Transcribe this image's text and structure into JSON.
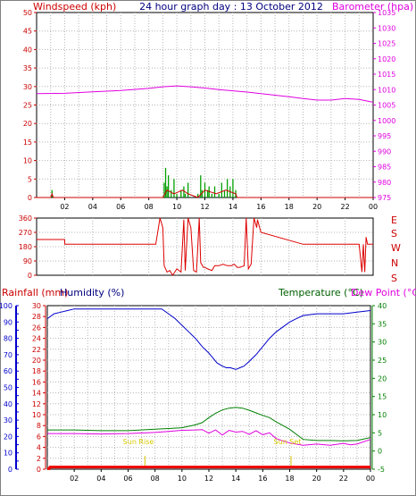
{
  "header": {
    "left_label": "Windspeed (kph)",
    "title": "24 hour graph day : 13 October 2012",
    "right_label": "Barometer (hpa)"
  },
  "bottom_header": {
    "rainfall_label": "Rainfall (mm)",
    "humidity_label": "Humidity (%)",
    "temperature_label": "Temperature (°C)",
    "dewpoint_label": "Dew Point (°C)"
  },
  "annotations": {
    "sunrise": "Sun Rise",
    "sunset": "Sun Set"
  },
  "colors": {
    "windspeed": "#00a000",
    "gust": "#cc0000",
    "barometer": "#e000e0",
    "direction": "#dd0000",
    "humidity": "#0000cc",
    "temperature": "#008000",
    "dewpoint": "#e000e0",
    "rainfall": "#ee0000",
    "sun": "#d8c800"
  },
  "chart_data": [
    {
      "type": "line",
      "ylim_left": [
        0,
        50
      ],
      "yticks_left": [
        0,
        5,
        10,
        15,
        20,
        25,
        30,
        35,
        40,
        45,
        50
      ],
      "ylim_right": [
        975,
        1035
      ],
      "yticks_right": [
        975,
        980,
        985,
        990,
        995,
        1000,
        1005,
        1010,
        1015,
        1020,
        1025,
        1030,
        1035
      ],
      "xlim": [
        0,
        24
      ],
      "xticks": [
        "02",
        "04",
        "06",
        "08",
        "10",
        "12",
        "14",
        "16",
        "18",
        "20",
        "22",
        "00"
      ],
      "series": [
        {
          "axis": "right",
          "x": [
            0,
            2,
            4,
            6,
            8,
            9,
            10,
            11,
            12,
            13,
            14,
            15,
            16,
            17,
            18,
            19,
            20,
            21,
            22,
            23,
            24
          ],
          "values": [
            1008.7,
            1008.8,
            1009.3,
            1009.7,
            1010.4,
            1010.9,
            1011.2,
            1010.9,
            1010.5,
            1010.0,
            1009.6,
            1009.2,
            1008.7,
            1008.2,
            1007.7,
            1007.1,
            1006.6,
            1006.6,
            1007.1,
            1006.8,
            1005.9
          ]
        },
        {
          "axis": "left",
          "x": [
            0,
            1.0,
            1.1,
            1.2,
            9.0,
            9.1,
            9.2,
            9.3,
            9.4,
            9.6,
            9.8,
            10.0,
            10.3,
            10.5,
            10.6,
            10.8,
            11.0,
            11.2,
            11.5,
            11.7,
            11.8,
            12.0,
            12.2,
            12.3,
            12.5,
            12.7,
            13.0,
            13.2,
            13.4,
            13.6,
            13.8,
            14.0,
            14.2,
            14.3,
            24
          ],
          "values": [
            0,
            0,
            2,
            0,
            0,
            4,
            8,
            3,
            6,
            2,
            5,
            1,
            2,
            3,
            1,
            4,
            0,
            0,
            1,
            6,
            2,
            4,
            2,
            3,
            1,
            3,
            1,
            4,
            2,
            5,
            3,
            5,
            2,
            0,
            0
          ]
        },
        {
          "axis": "left",
          "x": [
            0,
            1.0,
            1.1,
            1.2,
            9.0,
            9.3,
            9.8,
            10.4,
            10.8,
            11.5,
            12.0,
            12.8,
            13.5,
            14.2,
            14.3,
            24
          ],
          "values": [
            0,
            0,
            1,
            0,
            0,
            2,
            1,
            2,
            1,
            0,
            2,
            1,
            2,
            1,
            0,
            0
          ]
        }
      ]
    },
    {
      "type": "line",
      "ylim": [
        0,
        360
      ],
      "yticks": [
        0,
        90,
        180,
        270,
        360
      ],
      "compass_labels": [
        "E",
        "S",
        "W",
        "N",
        "S"
      ],
      "xlim": [
        0,
        24
      ],
      "x": [
        0,
        2,
        2.01,
        8.5,
        8.8,
        9.0,
        9.1,
        9.3,
        9.5,
        9.7,
        10.0,
        10.3,
        10.5,
        10.6,
        10.8,
        11.0,
        11.2,
        11.4,
        11.6,
        11.7,
        11.9,
        12.0,
        12.2,
        12.5,
        12.7,
        13.0,
        13.3,
        13.6,
        13.9,
        14.1,
        14.3,
        14.5,
        14.8,
        14.95,
        15.1,
        15.3,
        15.5,
        15.7,
        15.75,
        16.0,
        19.0,
        23.0,
        23.2,
        23.3,
        23.4,
        23.5,
        23.6,
        24
      ],
      "values": [
        225,
        225,
        195,
        195,
        360,
        300,
        60,
        20,
        30,
        0,
        40,
        20,
        350,
        30,
        360,
        300,
        30,
        20,
        360,
        80,
        50,
        50,
        40,
        30,
        60,
        60,
        70,
        60,
        60,
        70,
        50,
        50,
        60,
        360,
        40,
        70,
        360,
        300,
        350,
        270,
        195,
        195,
        20,
        195,
        20,
        240,
        195,
        195
      ]
    },
    {
      "type": "line",
      "ylim_left": [
        0,
        30
      ],
      "yticks_rain": [
        0,
        2,
        4,
        6,
        8,
        10,
        12,
        14,
        16,
        18,
        20,
        22,
        24,
        26,
        28,
        30
      ],
      "ylim_humidity": [
        0,
        100
      ],
      "yticks_humidity": [
        0,
        5,
        10,
        15,
        20,
        25,
        30,
        35,
        40,
        45,
        50,
        55,
        60,
        65,
        70,
        75,
        80,
        85,
        90,
        95,
        100
      ],
      "ylim_right": [
        -5,
        40
      ],
      "yticks_right": [
        -5,
        0,
        5,
        10,
        15,
        20,
        25,
        30,
        35,
        40
      ],
      "xlim": [
        0,
        24
      ],
      "xticks": [
        "02",
        "04",
        "06",
        "08",
        "10",
        "12",
        "14",
        "16",
        "18",
        "20",
        "22",
        "00"
      ],
      "sunrise_hour": 7.25,
      "sunset_hour": 18.1,
      "series": [
        {
          "axis": "humidity",
          "x": [
            0,
            0.5,
            1,
            1.5,
            2,
            8.5,
            9,
            9.5,
            10,
            10.5,
            11,
            11.5,
            12,
            12.3,
            12.6,
            13,
            13.3,
            13.6,
            14,
            14.3,
            14.6,
            15,
            15.5,
            16,
            16.5,
            17,
            17.5,
            18,
            18.5,
            19,
            20,
            21,
            22,
            23,
            24
          ],
          "values": [
            92,
            95,
            96,
            97,
            98,
            98,
            95,
            92,
            88,
            84,
            80,
            75,
            71,
            68,
            65,
            63,
            62,
            62,
            61,
            62,
            63,
            66,
            70,
            75,
            80,
            84,
            87,
            90,
            92,
            94,
            95,
            95,
            95,
            96,
            97
          ]
        },
        {
          "axis": "right",
          "x": [
            0,
            2,
            4,
            6,
            8,
            9,
            10,
            11,
            11.5,
            12,
            12.5,
            13,
            13.5,
            14,
            14.5,
            15,
            15.5,
            16,
            16.5,
            17,
            17.5,
            18,
            18.5,
            19,
            20,
            21,
            22,
            23,
            24
          ],
          "values": [
            5.8,
            5.8,
            5.6,
            5.6,
            6.0,
            6.2,
            6.4,
            7.2,
            7.8,
            9.2,
            10.4,
            11.3,
            11.8,
            12.0,
            11.8,
            11.2,
            10.5,
            9.8,
            9.2,
            8.0,
            7.0,
            6.0,
            4.6,
            3.2,
            2.9,
            2.9,
            2.8,
            2.9,
            3.7
          ]
        },
        {
          "axis": "right",
          "x": [
            0,
            2,
            4,
            6,
            8,
            9,
            10,
            11,
            11.5,
            12,
            12.5,
            13,
            13.5,
            14,
            14.5,
            15,
            15.5,
            16,
            16.5,
            17,
            17.5,
            18,
            19,
            20,
            21,
            22,
            22.5,
            23,
            24
          ],
          "values": [
            4.8,
            4.8,
            4.7,
            4.8,
            5.1,
            5.4,
            5.7,
            5.8,
            5.9,
            4.9,
            5.8,
            4.4,
            5.7,
            5.2,
            5.4,
            4.6,
            5.6,
            4.5,
            5.0,
            3.4,
            2.8,
            2.2,
            1.6,
            1.9,
            1.6,
            2.1,
            1.7,
            1.9,
            3.2
          ]
        },
        {
          "axis": "rain",
          "x": [
            0,
            0.15,
            0.2,
            24
          ],
          "values": [
            0.1,
            0.1,
            0.4,
            0.4
          ]
        }
      ]
    }
  ]
}
